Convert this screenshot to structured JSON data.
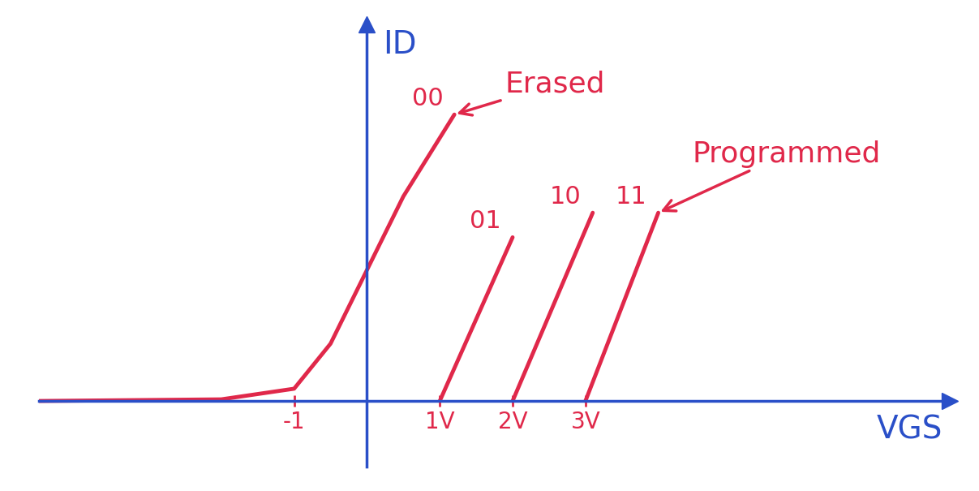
{
  "chart_data": {
    "type": "line",
    "x_label": "VGS",
    "y_label": "ID",
    "series": [
      {
        "name": "00",
        "color": "#e0284a",
        "x": [
          -4.5,
          -2.0,
          -1.0,
          -0.5,
          0.0,
          0.5,
          1.2
        ],
        "values": [
          0.0,
          0.02,
          0.15,
          0.7,
          1.6,
          2.5,
          3.5
        ]
      },
      {
        "name": "01",
        "color": "#e0284a",
        "x": [
          1.0,
          2.0
        ],
        "values": [
          0.0,
          2.0
        ]
      },
      {
        "name": "10",
        "color": "#e0284a",
        "x": [
          2.0,
          3.1
        ],
        "values": [
          0.0,
          2.3
        ]
      },
      {
        "name": "11",
        "color": "#e0284a",
        "x": [
          3.0,
          4.0
        ],
        "values": [
          0.0,
          2.3
        ]
      }
    ],
    "annotations": [
      {
        "text": "Erased",
        "series": "00"
      },
      {
        "text": "Programmed",
        "series": "11"
      }
    ],
    "xlim": [
      -4.5,
      8.0
    ],
    "ylim": [
      -0.8,
      4.6
    ],
    "xticks": [
      -1,
      {
        "value": 1,
        "label": "1V"
      },
      {
        "value": 2,
        "label": "2V"
      },
      {
        "value": 3,
        "label": "3V"
      }
    ],
    "yticks": [],
    "tick_labels": "x"
  }
}
